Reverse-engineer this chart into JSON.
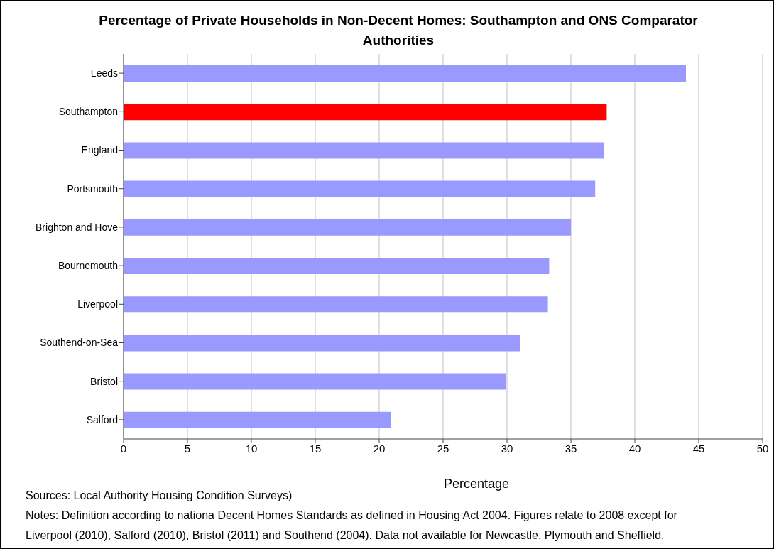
{
  "chart_data": {
    "type": "bar",
    "orientation": "horizontal",
    "title": "Percentage of Private Households in Non-Decent Homes: Southampton and ONS Comparator Authorities",
    "xlabel": "Percentage",
    "categories": [
      "Leeds",
      "Southampton",
      "England",
      "Portsmouth",
      "Brighton and Hove",
      "Bournemouth",
      "Liverpool",
      "Southend-on-Sea",
      "Bristol",
      "Salford"
    ],
    "values": [
      44.0,
      37.8,
      37.6,
      36.9,
      35.0,
      33.3,
      33.2,
      31.0,
      29.9,
      20.9
    ],
    "colors": [
      "#9999ff",
      "#ff0000",
      "#9999ff",
      "#9999ff",
      "#9999ff",
      "#9999ff",
      "#9999ff",
      "#9999ff",
      "#9999ff",
      "#9999ff"
    ],
    "xlim": [
      0,
      50
    ],
    "xticks": [
      0,
      5,
      10,
      15,
      20,
      25,
      30,
      35,
      40,
      45,
      50
    ],
    "grid": "x",
    "annotations": [
      "Sources: Local Authority Housing Condition Surveys)",
      "Notes: Definition according to nationa Decent Homes Standards as defined in Housing Act 2004. Figures relate to 2008 except for Liverpool (2010), Salford (2010), Bristol (2011) and Southend (2004). Data not available for Newcastle, Plymouth and Sheffield."
    ]
  }
}
